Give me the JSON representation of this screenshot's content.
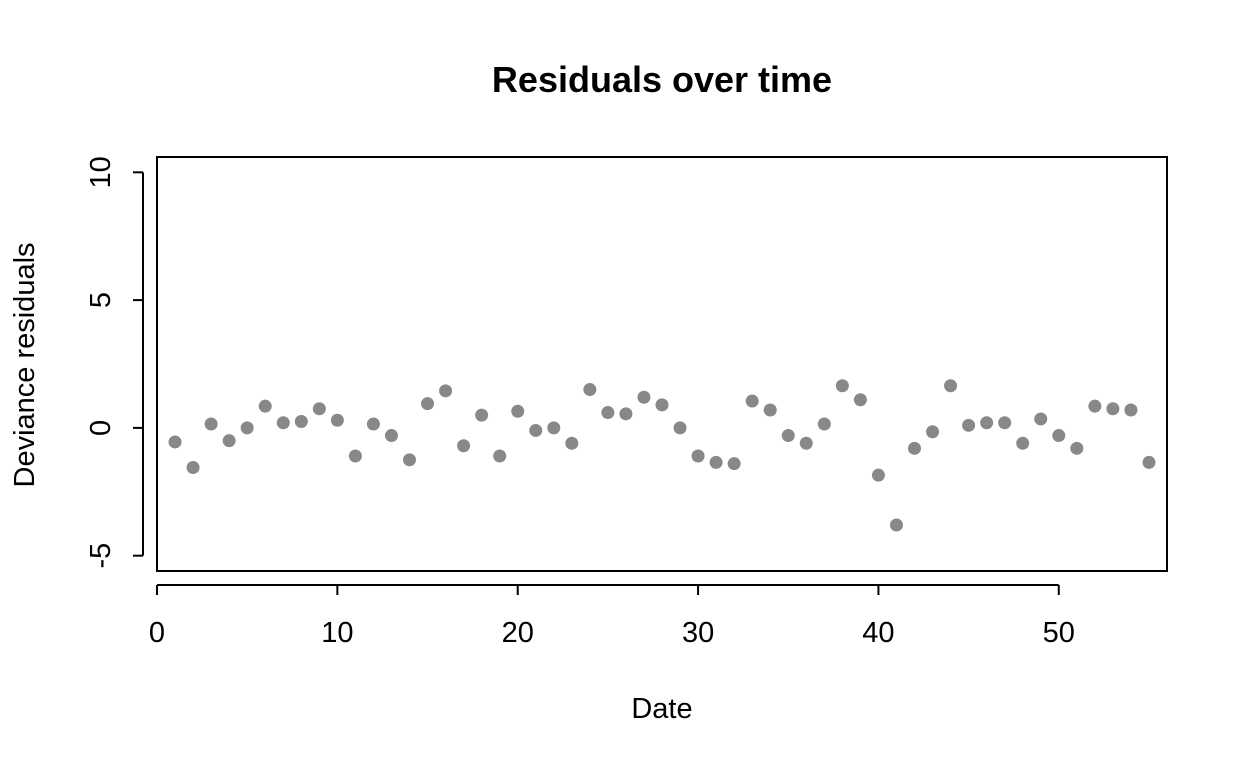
{
  "chart_data": {
    "type": "scatter",
    "title": "Residuals over time",
    "xlabel": "Date",
    "ylabel": "Deviance residuals",
    "xlim": [
      0,
      56
    ],
    "ylim": [
      -5.6,
      10.6
    ],
    "x_ticks": [
      0,
      10,
      20,
      30,
      40,
      50
    ],
    "y_ticks": [
      -5,
      0,
      5,
      10
    ],
    "grid": false,
    "legend": "none",
    "point_color": "#888888",
    "series": [
      {
        "x": [
          1,
          2,
          3,
          4,
          5,
          6,
          7,
          8,
          9,
          10,
          11,
          12,
          13,
          14,
          15,
          16,
          17,
          18,
          19,
          20,
          21,
          22,
          23,
          24,
          25,
          26,
          27,
          28,
          29,
          30,
          31,
          32,
          33,
          34,
          35,
          36,
          37,
          38,
          39,
          40,
          41,
          42,
          43,
          44,
          45,
          46,
          47,
          48,
          49,
          50,
          51,
          52,
          53,
          54,
          55
        ],
        "y": [
          -0.55,
          -1.55,
          0.15,
          -0.5,
          0.0,
          0.85,
          0.2,
          0.25,
          0.75,
          0.3,
          -1.1,
          0.15,
          -0.3,
          -1.25,
          0.95,
          1.45,
          -0.7,
          0.5,
          -1.1,
          0.65,
          -0.1,
          0.0,
          -0.6,
          1.5,
          0.6,
          0.55,
          1.2,
          0.9,
          0.0,
          -1.1,
          -1.35,
          -1.4,
          1.05,
          0.7,
          -0.3,
          -0.6,
          0.15,
          1.65,
          1.1,
          -1.85,
          -3.8,
          -0.8,
          -0.15,
          1.65,
          0.1,
          0.2,
          0.2,
          -0.6,
          0.35,
          -0.3,
          -0.8,
          0.85,
          0.75,
          0.7,
          -1.35
        ]
      }
    ]
  }
}
